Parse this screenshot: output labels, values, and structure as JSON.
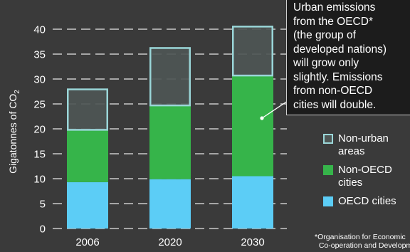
{
  "chart_data": {
    "type": "bar",
    "stacked": true,
    "categories": [
      "2006",
      "2020",
      "2030"
    ],
    "series": [
      {
        "name": "OECD cities",
        "color": "#5ccdf6",
        "values": [
          9.3,
          9.9,
          10.5
        ]
      },
      {
        "name": "Non-OECD cities",
        "color": "#36b44a",
        "values": [
          10.5,
          14.8,
          20.2
        ]
      },
      {
        "name": "Non-urban areas",
        "color": "#4e5655",
        "border": "#9ad6d8",
        "values": [
          8.3,
          11.7,
          10.0
        ]
      }
    ],
    "title": "",
    "ylabel": "Gigatonnes of CO2",
    "ylim": [
      0,
      40
    ],
    "yticks": [
      0,
      5,
      10,
      15,
      20,
      25,
      30,
      35,
      40
    ],
    "grid": "dashed horizontal",
    "legend_position": "right"
  },
  "ylabel_main": "Gigatonnes of CO",
  "ylabel_sub": "2",
  "annotation": "Urban emissions\nfrom the OECD*\n(the group of\ndeveloped nations)\nwill grow only\nslightly. Emissions\nfrom non-OECD\ncities will double.",
  "legend": [
    {
      "label": "Non-urban areas",
      "color": "#4e5655",
      "border": "#9ad6d8"
    },
    {
      "label": "Non-OECD cities",
      "color": "#36b44a",
      "border": "#36b44a"
    },
    {
      "label": "OECD cities",
      "color": "#5ccdf6",
      "border": "#5ccdf6"
    }
  ],
  "footnote": "*Organisation for Economic\n  Co-operation and Development",
  "colors": {
    "background": "#3a3a3a",
    "callout_bg": "#1c1c1c",
    "grid": "#e6e6e6"
  }
}
